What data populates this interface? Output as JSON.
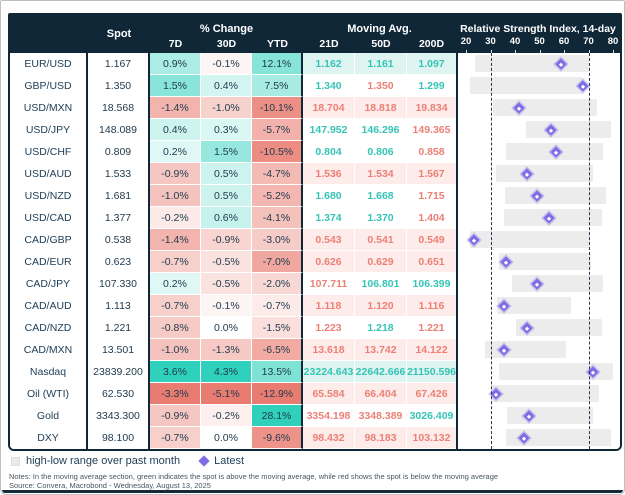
{
  "theme": {
    "header_bg": "#0f2737",
    "header_text": "#ffffff",
    "table_border": "#0f2737",
    "label_text": "#1c3c55",
    "value_text": "#213b4f",
    "heat_pos": "#2fd0bc",
    "heat_neg": "#e97c70",
    "ma_up_text": "#35c4b5",
    "ma_down_text": "#ec8076",
    "ma_bg_up": "#def4f1",
    "ma_bg_down": "#fdecea",
    "range_bar": "#ececec",
    "marker": "#7e6ce6",
    "dash_line": "#223850"
  },
  "header": {
    "spot_label": "Spot",
    "pct_group_label": "% Change",
    "pct_columns": [
      "7D",
      "30D",
      "YTD"
    ],
    "ma_group_label": "Moving Avg.",
    "ma_columns": [
      "21D",
      "50D",
      "200D"
    ],
    "rsi_label": "Relative Strength Index, 14-day"
  },
  "legend": {
    "range_swatch": "gray-square",
    "range_label": "high-low range over past month",
    "latest_swatch": "purple-diamond",
    "latest_label": "Latest"
  },
  "footer": {
    "notes": "Notes: In the moving average section, green indicates the spot is above the moving average, while red shows the spot is below the moving average",
    "source": "Source: Convera, Macrobond - Wednesday, August 13, 2025"
  },
  "chart_data": {
    "type": "table",
    "columns": [
      "Spot",
      "% Change 7D",
      "% Change 30D",
      "% Change YTD",
      "Moving Avg. 21D",
      "Moving Avg. 50D",
      "Moving Avg. 200D",
      "RSI 14-day"
    ],
    "rsi_axis": {
      "min": 20,
      "max": 80,
      "ticks": [
        20,
        30,
        40,
        50,
        60,
        70,
        80
      ],
      "lower_band": 30,
      "upper_band": 70
    },
    "rows": [
      {
        "name": "EUR/USD",
        "spot": "1.167",
        "pct": [
          0.9,
          -0.1,
          12.1
        ],
        "ma": [
          [
            "1.162",
            "up"
          ],
          [
            "1.161",
            "up"
          ],
          [
            "1.097",
            "up"
          ]
        ],
        "rsi": {
          "latest": 58,
          "low": 23,
          "high": 69.5
        }
      },
      {
        "name": "GBP/USD",
        "spot": "1.350",
        "pct": [
          1.5,
          0.4,
          7.5
        ],
        "ma": [
          [
            "1.340",
            "up"
          ],
          [
            "1.350",
            "down"
          ],
          [
            "1.299",
            "up"
          ]
        ],
        "rsi": {
          "latest": 67,
          "low": 21,
          "high": 67
        }
      },
      {
        "name": "USD/MXN",
        "spot": "18.568",
        "pct": [
          -1.4,
          -1.0,
          -10.1
        ],
        "ma": [
          [
            "18.704",
            "down"
          ],
          [
            "18.818",
            "down"
          ],
          [
            "19.834",
            "down"
          ]
        ],
        "rsi": {
          "latest": 41,
          "low": 30,
          "high": 72.5
        }
      },
      {
        "name": "USD/JPY",
        "spot": "148.089",
        "pct": [
          0.4,
          0.3,
          -5.7
        ],
        "ma": [
          [
            "147.952",
            "up"
          ],
          [
            "146.296",
            "up"
          ],
          [
            "149.365",
            "down"
          ]
        ],
        "rsi": {
          "latest": 54,
          "low": 43.5,
          "high": 78.5
        }
      },
      {
        "name": "USD/CHF",
        "spot": "0.809",
        "pct": [
          0.2,
          1.5,
          -10.5
        ],
        "ma": [
          [
            "0.804",
            "up"
          ],
          [
            "0.806",
            "up"
          ],
          [
            "0.858",
            "down"
          ]
        ],
        "rsi": {
          "latest": 56,
          "low": 35.5,
          "high": 75
        }
      },
      {
        "name": "USD/AUD",
        "spot": "1.533",
        "pct": [
          -0.9,
          0.5,
          -4.7
        ],
        "ma": [
          [
            "1.536",
            "down"
          ],
          [
            "1.534",
            "down"
          ],
          [
            "1.567",
            "down"
          ]
        ],
        "rsi": {
          "latest": 44,
          "low": 31.5,
          "high": 71
        }
      },
      {
        "name": "USD/NZD",
        "spot": "1.681",
        "pct": [
          -1.0,
          0.5,
          -5.2
        ],
        "ma": [
          [
            "1.680",
            "up"
          ],
          [
            "1.668",
            "up"
          ],
          [
            "1.715",
            "down"
          ]
        ],
        "rsi": {
          "latest": 48,
          "low": 35,
          "high": 76.5
        }
      },
      {
        "name": "USD/CAD",
        "spot": "1.377",
        "pct": [
          -0.2,
          0.6,
          -4.1
        ],
        "ma": [
          [
            "1.374",
            "up"
          ],
          [
            "1.370",
            "up"
          ],
          [
            "1.404",
            "down"
          ]
        ],
        "rsi": {
          "latest": 53,
          "low": 34.5,
          "high": 74.5
        }
      },
      {
        "name": "CAD/GBP",
        "spot": "0.538",
        "pct": [
          -1.4,
          -0.9,
          -3.0
        ],
        "ma": [
          [
            "0.543",
            "down"
          ],
          [
            "0.541",
            "down"
          ],
          [
            "0.549",
            "down"
          ]
        ],
        "rsi": {
          "latest": 22.5,
          "low": 21,
          "high": 70
        }
      },
      {
        "name": "CAD/EUR",
        "spot": "0.623",
        "pct": [
          -0.7,
          -0.5,
          -7.0
        ],
        "ma": [
          [
            "0.626",
            "down"
          ],
          [
            "0.629",
            "down"
          ],
          [
            "0.651",
            "down"
          ]
        ],
        "rsi": {
          "latest": 35.5,
          "low": 32.5,
          "high": 70
        }
      },
      {
        "name": "CAD/JPY",
        "spot": "107.330",
        "pct": [
          0.2,
          -0.5,
          -2.0
        ],
        "ma": [
          [
            "107.711",
            "down"
          ],
          [
            "106.801",
            "up"
          ],
          [
            "106.399",
            "up"
          ]
        ],
        "rsi": {
          "latest": 48,
          "low": 38,
          "high": 75
        }
      },
      {
        "name": "CAD/AUD",
        "spot": "1.113",
        "pct": [
          -0.7,
          -0.1,
          -0.7
        ],
        "ma": [
          [
            "1.118",
            "down"
          ],
          [
            "1.120",
            "down"
          ],
          [
            "1.116",
            "down"
          ]
        ],
        "rsi": {
          "latest": 34.5,
          "low": 32,
          "high": 62
        }
      },
      {
        "name": "CAD/NZD",
        "spot": "1.221",
        "pct": [
          -0.8,
          0.0,
          -1.5
        ],
        "ma": [
          [
            "1.223",
            "down"
          ],
          [
            "1.218",
            "up"
          ],
          [
            "1.221",
            "down"
          ]
        ],
        "rsi": {
          "latest": 44,
          "low": 39.5,
          "high": 74.5
        }
      },
      {
        "name": "CAD/MXN",
        "spot": "13.501",
        "pct": [
          -1.0,
          -1.3,
          -6.5
        ],
        "ma": [
          [
            "13.618",
            "down"
          ],
          [
            "13.742",
            "down"
          ],
          [
            "14.122",
            "down"
          ]
        ],
        "rsi": {
          "latest": 34.5,
          "low": 27,
          "high": 60
        }
      },
      {
        "name": "Nasdaq",
        "spot": "23839.200",
        "pct": [
          3.6,
          4.3,
          13.5
        ],
        "ma": [
          [
            "23224.643",
            "up"
          ],
          [
            "22642.666",
            "up"
          ],
          [
            "21150.596",
            "up"
          ]
        ],
        "rsi": {
          "latest": 71,
          "low": 32.5,
          "high": 79
        }
      },
      {
        "name": "Oil (WTI)",
        "spot": "62.530",
        "pct": [
          -3.3,
          -5.1,
          -12.9
        ],
        "ma": [
          [
            "65.584",
            "down"
          ],
          [
            "66.404",
            "down"
          ],
          [
            "67.426",
            "down"
          ]
        ],
        "rsi": {
          "latest": 31.5,
          "low": 29.5,
          "high": 73.5
        }
      },
      {
        "name": "Gold",
        "spot": "3343.300",
        "pct": [
          -0.9,
          -0.2,
          28.1
        ],
        "ma": [
          [
            "3354.198",
            "down"
          ],
          [
            "3348.389",
            "down"
          ],
          [
            "3026.409",
            "up"
          ]
        ],
        "rsi": {
          "latest": 45,
          "low": 36,
          "high": 71
        }
      },
      {
        "name": "DXY",
        "spot": "98.100",
        "pct": [
          -0.7,
          0.0,
          -9.6
        ],
        "ma": [
          [
            "98.432",
            "down"
          ],
          [
            "98.183",
            "down"
          ],
          [
            "103.132",
            "down"
          ]
        ],
        "rsi": {
          "latest": 43,
          "low": 35.5,
          "high": 78.5
        }
      }
    ]
  }
}
